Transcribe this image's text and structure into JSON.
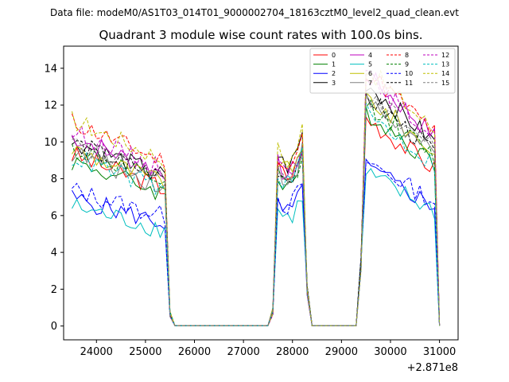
{
  "chart_data": {
    "type": "line",
    "suptitle": "Data file: modeM0/AS1T03_014T01_9000002704_18163cztM0_level2_quad_clean.evt",
    "title": "Quadrant 3 module wise count rates with 100.0s bins.",
    "xlabel": "",
    "ylabel": "",
    "x_offset_label": "+2.871e8",
    "xlim": [
      23330,
      31380
    ],
    "ylim": [
      -0.75,
      15.2
    ],
    "xticks": [
      24000,
      25000,
      26000,
      27000,
      28000,
      29000,
      30000,
      31000
    ],
    "xtick_labels": [
      "24000",
      "25000",
      "26000",
      "27000",
      "28000",
      "29000",
      "30000",
      "31000"
    ],
    "yticks": [
      0,
      2,
      4,
      6,
      8,
      10,
      12,
      14
    ],
    "ytick_labels": [
      "0",
      "2",
      "4",
      "6",
      "8",
      "10",
      "12",
      "14"
    ],
    "legend_location": "upper-right",
    "legend_columns": 4,
    "segments": [
      {
        "start": 23500,
        "end": 25400
      },
      {
        "start": 27700,
        "end": 28200
      },
      {
        "start": 29500,
        "end": 30950
      }
    ],
    "series": [
      {
        "name": "0",
        "color": "#ff0000",
        "dash": "solid",
        "seg_levels": [
          8.3,
          8.7,
          9.6
        ]
      },
      {
        "name": "1",
        "color": "#008000",
        "dash": "solid",
        "seg_levels": [
          8.0,
          8.2,
          9.9
        ]
      },
      {
        "name": "2",
        "color": "#0000ff",
        "dash": "solid",
        "seg_levels": [
          6.2,
          6.6,
          7.3
        ]
      },
      {
        "name": "3",
        "color": "#000000",
        "dash": "solid",
        "seg_levels": [
          9.0,
          9.3,
          11.2
        ]
      },
      {
        "name": "4",
        "color": "#bf00bf",
        "dash": "solid",
        "seg_levels": [
          9.2,
          8.8,
          11.6
        ]
      },
      {
        "name": "5",
        "color": "#00bfbf",
        "dash": "solid",
        "seg_levels": [
          5.8,
          6.3,
          7.0
        ]
      },
      {
        "name": "6",
        "color": "#bfbf00",
        "dash": "solid",
        "seg_levels": [
          8.6,
          9.0,
          10.6
        ]
      },
      {
        "name": "7",
        "color": "#808080",
        "dash": "solid",
        "seg_levels": [
          8.4,
          8.5,
          10.4
        ]
      },
      {
        "name": "8",
        "color": "#ff0000",
        "dash": "dashed",
        "seg_levels": [
          9.9,
          9.1,
          11.8
        ]
      },
      {
        "name": "9",
        "color": "#008000",
        "dash": "dashed",
        "seg_levels": [
          8.6,
          8.1,
          10.3
        ]
      },
      {
        "name": "10",
        "color": "#0000ff",
        "dash": "dashed",
        "seg_levels": [
          6.6,
          7.0,
          7.6
        ]
      },
      {
        "name": "11",
        "color": "#000000",
        "dash": "dashed",
        "seg_levels": [
          8.9,
          8.6,
          10.6
        ]
      },
      {
        "name": "12",
        "color": "#bf00bf",
        "dash": "dashed",
        "seg_levels": [
          9.4,
          8.9,
          11.5
        ]
      },
      {
        "name": "13",
        "color": "#00bfbf",
        "dash": "dashed",
        "seg_levels": [
          8.2,
          8.3,
          9.8
        ]
      },
      {
        "name": "14",
        "color": "#bfbf00",
        "dash": "dashed",
        "seg_levels": [
          10.0,
          9.6,
          11.9
        ]
      },
      {
        "name": "15",
        "color": "#808080",
        "dash": "dashed",
        "seg_levels": [
          8.8,
          8.4,
          10.8
        ]
      }
    ]
  }
}
